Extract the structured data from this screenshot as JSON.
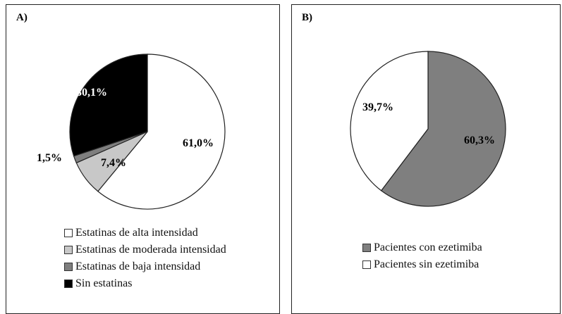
{
  "chart_data": [
    {
      "type": "pie",
      "panel_label": "A)",
      "slices": [
        {
          "label": "Estatinas de alta intensidad",
          "value": 61.0,
          "value_label": "61,0%",
          "color": "#ffffff",
          "label_color": "#000000"
        },
        {
          "label": "Estatinas de moderada intensidad",
          "value": 7.4,
          "value_label": "7,4%",
          "color": "#c8c8c8",
          "label_color": "#000000"
        },
        {
          "label": "Estatinas de baja intensidad",
          "value": 1.5,
          "value_label": "1,5%",
          "color": "#7f7f7f",
          "label_color": "#000000"
        },
        {
          "label": "Sin estatinas",
          "value": 30.1,
          "value_label": "30,1%",
          "color": "#000000",
          "label_color": "#ffffff"
        }
      ],
      "legend_position": "bottom",
      "start_angle": "12 o'clock",
      "direction": "clockwise"
    },
    {
      "type": "pie",
      "panel_label": "B)",
      "slices": [
        {
          "label": "Pacientes con ezetimiba",
          "value": 60.3,
          "value_label": "60,3%",
          "color": "#7f7f7f",
          "label_color": "#000000"
        },
        {
          "label": "Pacientes sin ezetimiba",
          "value": 39.7,
          "value_label": "39,7%",
          "color": "#ffffff",
          "label_color": "#000000"
        }
      ],
      "legend_position": "bottom",
      "start_angle": "12 o'clock",
      "direction": "clockwise"
    }
  ]
}
